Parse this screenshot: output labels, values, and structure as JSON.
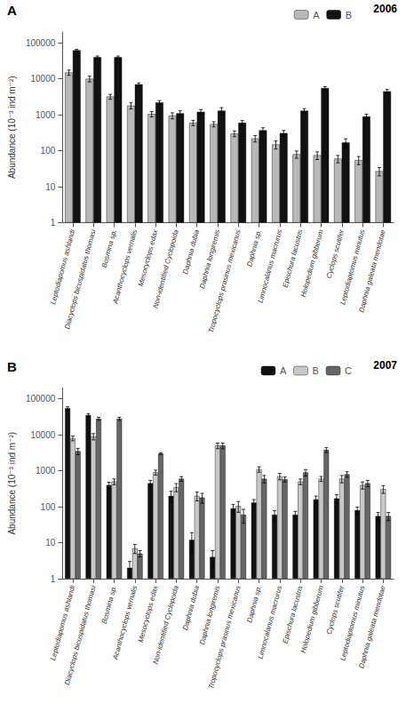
{
  "chart_data": [
    {
      "type": "bar",
      "annotations": [
        "A",
        "2006"
      ],
      "categories": [
        "Leptodiapomus ashlandi",
        "Diacyclops bicuspidatus thomasi",
        "Bosmina sp.",
        "Acanthocyclops vernalis",
        "Mesocyclops edax",
        "Non-identified Cyclopoida",
        "Daphnia dubia",
        "Daphnia longiremis",
        "Tropocyclops prasinus mexicanus",
        "Daphnia sp.",
        "Limnocalanus macrurus",
        "Epischura lacustris",
        "Holopedium gibberum",
        "Cyclops scutifer",
        "Leptodiaptomus minutus",
        "Daphnia galeata mendotae"
      ],
      "series": [
        {
          "name": "A",
          "color": "#b8b8b8",
          "values": [
            15000,
            10000,
            3200,
            1800,
            1050,
            950,
            600,
            550,
            300,
            220,
            150,
            80,
            75,
            60,
            55,
            27
          ],
          "errors": [
            2500,
            1800,
            500,
            350,
            180,
            180,
            100,
            90,
            55,
            45,
            38,
            18,
            18,
            14,
            14,
            7
          ]
        },
        {
          "name": "B",
          "color": "#111111",
          "values": [
            62000,
            40000,
            40000,
            7000,
            2200,
            1100,
            1200,
            1300,
            600,
            370,
            310,
            1300,
            5500,
            170,
            900,
            4500
          ],
          "errors": [
            4000,
            3000,
            3000,
            700,
            280,
            190,
            190,
            280,
            90,
            65,
            55,
            180,
            550,
            45,
            140,
            550
          ]
        }
      ],
      "ylabel": "Abundance (10⁻³ ind m⁻²)",
      "ylim": [
        1,
        200000
      ],
      "yticks": [
        1,
        10,
        100,
        1000,
        10000,
        100000
      ],
      "log": "y",
      "legend": "upper right",
      "grid": false
    },
    {
      "type": "bar",
      "annotations": [
        "B",
        "2007"
      ],
      "categories": [
        "Leptodiapomus ashlandi",
        "Diacyclops bicuspidatus thomasi",
        "Bosmina sp.",
        "Acanthocyclops vernalis",
        "Mesocyclops edax",
        "Non-identified Cyclopoida",
        "Daphnia dubia",
        "Daphnia longiremis",
        "Tropocyclops prasinus mexicanus",
        "Daphnia sp.",
        "Limnocalanus macrurus",
        "Epischura lacustris",
        "Holopedium gibberum",
        "Cyclops scutifer",
        "Leptodiaptomus minutus",
        "Daphnia galeata mendotae"
      ],
      "series": [
        {
          "name": "A",
          "color": "#111111",
          "values": [
            55000,
            35000,
            400,
            2,
            450,
            200,
            12,
            4,
            90,
            130,
            60,
            60,
            160,
            170,
            80,
            55
          ],
          "errors": [
            5000,
            3000,
            80,
            1,
            90,
            70,
            7,
            2,
            25,
            28,
            18,
            14,
            38,
            45,
            18,
            14
          ]
        },
        {
          "name": "B",
          "color": "#c8c8c8",
          "values": [
            8000,
            9000,
            500,
            7,
            900,
            350,
            200,
            5000,
            105,
            1100,
            700,
            500,
            600,
            600,
            400,
            310
          ],
          "errors": [
            1200,
            1800,
            90,
            2,
            140,
            90,
            55,
            900,
            35,
            190,
            140,
            90,
            95,
            140,
            90,
            75
          ]
        },
        {
          "name": "C",
          "color": "#666666",
          "values": [
            3500,
            28000,
            28000,
            5,
            3000,
            600,
            180,
            5000,
            60,
            600,
            580,
            900,
            3800,
            800,
            450,
            55
          ],
          "errors": [
            700,
            2800,
            2800,
            1,
            180,
            90,
            55,
            900,
            25,
            140,
            90,
            180,
            580,
            140,
            90,
            14
          ]
        }
      ],
      "ylabel": "Abundance (10⁻³ ind m⁻²)",
      "ylim": [
        1,
        200000
      ],
      "yticks": [
        1,
        10,
        100,
        1000,
        10000,
        100000
      ],
      "log": "y",
      "legend": "upper right",
      "grid": false
    }
  ]
}
